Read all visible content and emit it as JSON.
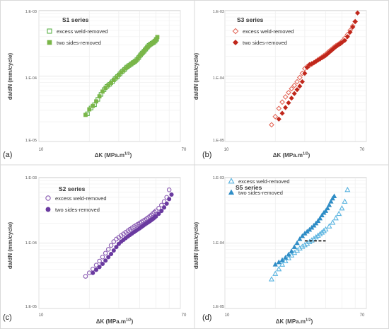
{
  "chart_data": [
    {
      "type": "scatter",
      "panel_label": "(a)",
      "title": "S1 series",
      "xlabel": "ΔK (MPa.m",
      "xlabel_sup": "1/2",
      "xlabel_end": ")",
      "ylabel": "da/dN (mm/cycle)",
      "x_scale": "log",
      "y_scale": "log",
      "xlim": [
        10,
        70
      ],
      "ylim": [
        1e-05,
        0.001
      ],
      "x_tick_labels": [
        "10",
        "70"
      ],
      "y_tick_labels": [
        "1.E-05",
        "1.E-04",
        "1.E-03"
      ],
      "grid": true,
      "legend": "top-left",
      "series": [
        {
          "name": "excess weld-removed",
          "marker": "open-square",
          "color": "#5cb24a",
          "x": [
            19.5,
            20.5,
            21.5,
            22.5,
            23.5,
            24.5,
            25.5,
            26.5,
            27.5,
            28.5,
            29.5,
            30.5,
            31.5,
            32.5,
            33.5,
            34.5,
            35.5,
            36.5,
            37.5,
            38.5,
            39.5,
            40.5,
            41.5,
            42.5,
            43.5,
            44.5,
            45.5,
            46.5,
            47.5,
            48.5,
            49.5,
            50.5
          ],
          "y": [
            2.65e-05,
            3.25e-05,
            3.65e-05,
            4.4e-05,
            5.25e-05,
            6.2e-05,
            6.95e-05,
            7.5e-05,
            8.2e-05,
            9.1e-05,
            9.85e-05,
            0.000108,
            0.000118,
            0.000126,
            0.000137,
            0.000145,
            0.000152,
            0.00016,
            0.000168,
            0.000178,
            0.000192,
            0.00021,
            0.000225,
            0.00024,
            0.000258,
            0.000278,
            0.000295,
            0.000308,
            0.000318,
            0.000328,
            0.000342,
            0.000365
          ]
        },
        {
          "name": "two sides-removed",
          "marker": "filled-square",
          "color": "#7ab648",
          "x": [
            19,
            20,
            21,
            22,
            23,
            24,
            25,
            26,
            27,
            28,
            29,
            30,
            31,
            32,
            33,
            34,
            35,
            36,
            37,
            38,
            39,
            40,
            41,
            42,
            43,
            44,
            45,
            46,
            47,
            48,
            49,
            50,
            51
          ],
          "y": [
            2.55e-05,
            3.1e-05,
            3.5e-05,
            4.1e-05,
            4.9e-05,
            5.8e-05,
            6.6e-05,
            7.25e-05,
            7.9e-05,
            8.7e-05,
            9.5e-05,
            0.000104,
            0.000114,
            0.000122,
            0.000132,
            0.00014,
            0.000148,
            0.000156,
            0.000163,
            0.000172,
            0.000185,
            0.000202,
            0.000218,
            0.000232,
            0.00025,
            0.000268,
            0.000285,
            0.0003,
            0.000312,
            0.000322,
            0.000338,
            0.00036,
            0.000395
          ]
        }
      ]
    },
    {
      "type": "scatter",
      "panel_label": "(b)",
      "title": "S3 series",
      "xlabel": "ΔK (MPa.m",
      "xlabel_sup": "1/2",
      "xlabel_end": ")",
      "ylabel": "da/dN (mm/cycle)",
      "x_scale": "log",
      "y_scale": "log",
      "xlim": [
        10,
        70
      ],
      "ylim": [
        1e-05,
        0.001
      ],
      "x_tick_labels": [
        "10",
        "70"
      ],
      "y_tick_labels": [
        "1.E-05",
        "1.E-04",
        "1.E-03"
      ],
      "grid": true,
      "legend": "top-left",
      "series": [
        {
          "name": "excess weld-removed",
          "marker": "open-diamond",
          "color": "#e36a5c",
          "x": [
            19,
            20,
            21,
            22,
            23,
            24,
            25,
            26,
            27,
            28,
            29,
            30,
            31,
            32,
            33,
            34,
            35,
            36,
            37,
            38,
            39,
            40,
            41,
            42,
            43,
            44,
            45,
            46,
            47,
            48,
            49,
            50,
            52,
            54,
            56,
            58,
            60
          ],
          "y": [
            1.8e-05,
            2.4e-05,
            3.2e-05,
            4e-05,
            4.8e-05,
            5.6e-05,
            6.4e-05,
            7.2e-05,
            8.2e-05,
            9.5e-05,
            0.00011,
            0.00013,
            0.00014,
            0.000145,
            0.000152,
            0.00016,
            0.000168,
            0.000178,
            0.000186,
            0.000195,
            0.000205,
            0.000215,
            0.000228,
            0.00024,
            0.000252,
            0.000265,
            0.000278,
            0.00029,
            0.0003,
            0.00031,
            0.00032,
            0.00034,
            0.00038,
            0.00043,
            0.0005,
            0.00058,
            0.00068
          ]
        },
        {
          "name": "two sides-removed",
          "marker": "filled-diamond",
          "color": "#c0271b",
          "x": [
            21,
            22,
            23,
            24,
            25,
            26,
            27,
            28,
            29,
            30,
            31,
            32,
            33,
            34,
            35,
            36,
            37,
            38,
            39,
            40,
            41,
            42,
            43,
            44,
            45,
            46,
            47,
            48,
            49,
            50,
            52,
            54,
            56,
            58,
            60,
            62
          ],
          "y": [
            2.2e-05,
            2.7e-05,
            3.3e-05,
            3.9e-05,
            4.6e-05,
            5.4e-05,
            6.2e-05,
            7e-05,
            8.2e-05,
            0.00011,
            0.000135,
            0.00015,
            0.000155,
            0.00016,
            0.000168,
            0.000175,
            0.000182,
            0.00019,
            0.000198,
            0.000207,
            0.000218,
            0.00023,
            0.000242,
            0.000255,
            0.000268,
            0.00028,
            0.000292,
            0.000303,
            0.000313,
            0.000325,
            0.00035,
            0.0004,
            0.00047,
            0.00056,
            0.00068,
            0.00092
          ]
        }
      ]
    },
    {
      "type": "scatter",
      "panel_label": "(c)",
      "title": "S2 series",
      "xlabel": "ΔK (MPa.m",
      "xlabel_sup": "1/2",
      "xlabel_end": ")",
      "ylabel": "da/dN (mm/cycle)",
      "x_scale": "log",
      "y_scale": "log",
      "xlim": [
        10,
        70
      ],
      "ylim": [
        1e-05,
        0.001
      ],
      "x_tick_labels": [
        "10",
        "70"
      ],
      "y_tick_labels": [
        "1.E-05",
        "1.E-04",
        "1.E-03"
      ],
      "grid": true,
      "legend": "top-left",
      "series": [
        {
          "name": "excess weld-removed",
          "marker": "open-circle",
          "color": "#8a5cb3",
          "x": [
            19,
            20,
            21,
            22,
            23,
            24,
            25,
            26,
            27,
            28,
            29,
            30,
            31,
            32,
            33,
            34,
            35,
            36,
            37,
            38,
            39,
            40,
            41,
            42,
            43,
            44,
            45,
            46,
            47,
            48,
            49,
            50,
            52,
            54,
            56,
            58,
            60
          ],
          "y": [
            3.1e-05,
            3.5e-05,
            4e-05,
            4.6e-05,
            5.3e-05,
            6.1e-05,
            7e-05,
            8e-05,
            9.2e-05,
            0.000105,
            0.000115,
            0.000122,
            0.00013,
            0.000138,
            0.000146,
            0.000154,
            0.000162,
            0.00017,
            0.000178,
            0.000186,
            0.000194,
            0.000202,
            0.00021,
            0.000218,
            0.000226,
            0.000235,
            0.000245,
            0.000256,
            0.000268,
            0.000282,
            0.000296,
            0.00031,
            0.00034,
            0.00038,
            0.00043,
            0.0005,
            0.00065
          ]
        },
        {
          "name": "two sides-removed",
          "marker": "filled-circle",
          "color": "#6a3aa0",
          "x": [
            21,
            22,
            23,
            24,
            25,
            26,
            27,
            28,
            29,
            30,
            31,
            32,
            33,
            34,
            35,
            36,
            37,
            38,
            39,
            40,
            41,
            42,
            43,
            44,
            45,
            46,
            47,
            48,
            49,
            50,
            52,
            54,
            56,
            58,
            60,
            62
          ],
          "y": [
            3.5e-05,
            3.9e-05,
            4.3e-05,
            4.8e-05,
            5.4e-05,
            6.1e-05,
            6.8e-05,
            7.7e-05,
            8.7e-05,
            9.7e-05,
            0.000105,
            0.000112,
            0.000119,
            0.000126,
            0.000133,
            0.00014,
            0.000147,
            0.000154,
            0.000161,
            0.000168,
            0.000176,
            0.000184,
            0.000192,
            0.0002,
            0.000208,
            0.000216,
            0.000225,
            0.000234,
            0.000244,
            0.000255,
            0.00028,
            0.00031,
            0.00035,
            0.0004,
            0.00047,
            0.00055
          ]
        }
      ]
    },
    {
      "type": "scatter",
      "panel_label": "(d)",
      "title": "S5 series",
      "xlabel": "ΔK (MPa.m",
      "xlabel_sup": "1/2",
      "xlabel_end": ")",
      "ylabel": "da/dN (mm/cycle)",
      "x_scale": "log",
      "y_scale": "log",
      "xlim": [
        10,
        70
      ],
      "ylim": [
        1e-05,
        0.001
      ],
      "x_tick_labels": [
        "10",
        "70"
      ],
      "y_tick_labels": [
        "1.E-05",
        "1.E-04",
        "1.E-03"
      ],
      "grid": true,
      "legend": "top-left",
      "series": [
        {
          "name": "excess weld-removed",
          "marker": "open-triangle",
          "color": "#5ab4e0",
          "x": [
            19,
            20,
            21,
            22,
            23,
            24,
            25,
            26,
            27,
            28,
            29,
            30,
            31,
            32,
            33,
            34,
            35,
            36,
            37,
            38,
            39,
            40,
            42,
            44,
            46,
            48,
            50,
            52,
            54
          ],
          "y": [
            2.8e-05,
            3.4e-05,
            4e-05,
            4.7e-05,
            5.3e-05,
            5.9e-05,
            6.5e-05,
            7.1e-05,
            7.7e-05,
            8.3e-05,
            8.8e-05,
            9.3e-05,
            9.8e-05,
            0.000104,
            0.00011,
            0.000116,
            0.000123,
            0.00013,
            0.000137,
            0.000145,
            0.000153,
            0.000162,
            0.00018,
            0.000205,
            0.00024,
            0.00028,
            0.00034,
            0.00043,
            0.00065
          ]
        },
        {
          "name": "two sides-removed",
          "marker": "filled-triangle",
          "color": "#2f8dc6",
          "x": [
            20,
            21,
            22,
            23,
            24,
            25,
            26,
            27,
            28,
            29,
            30,
            31,
            32,
            33,
            34,
            35,
            36,
            37,
            38,
            39,
            40,
            41,
            42,
            43,
            44,
            45
          ],
          "y": [
            4.7e-05,
            5.1e-05,
            5.5e-05,
            6e-05,
            6.7e-05,
            7.5e-05,
            8.7e-05,
            0.0001,
            0.000115,
            0.000128,
            0.00014,
            0.00015,
            0.00016,
            0.000172,
            0.000185,
            0.0002,
            0.000218,
            0.000238,
            0.000265,
            0.00029,
            0.00031,
            0.00034,
            0.00038,
            0.00043,
            0.00048,
            0.00052
          ]
        }
      ],
      "annotation_line": {
        "x": [
          30,
          40
        ],
        "y": 0.000108,
        "style": "dashed",
        "color": "#000000"
      }
    }
  ]
}
